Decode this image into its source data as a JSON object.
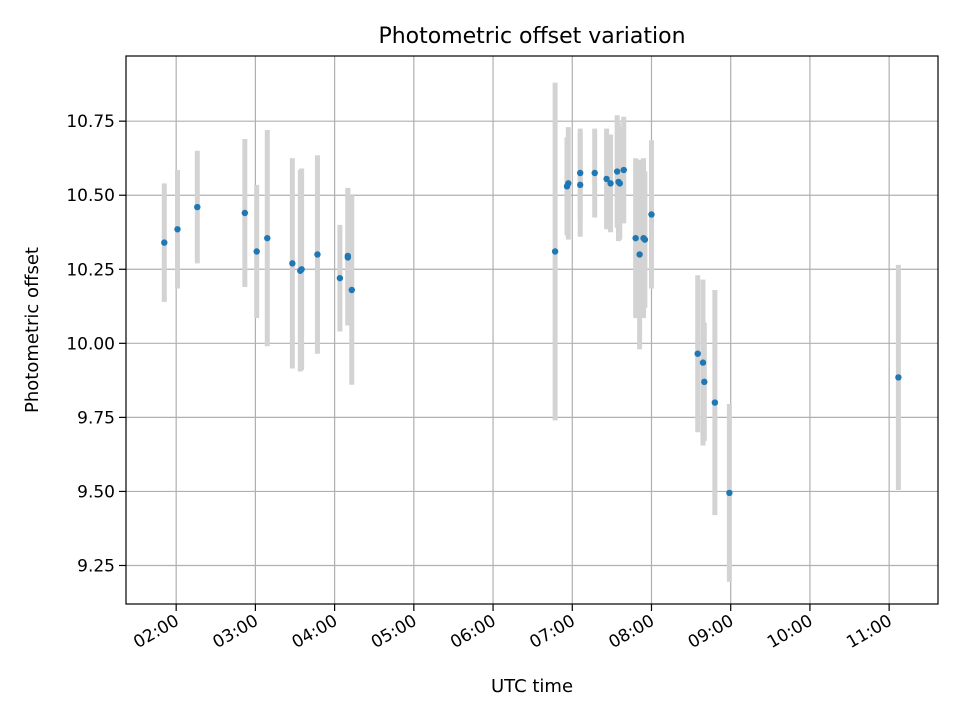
{
  "chart_data": {
    "type": "scatter",
    "title": "Photometric offset variation",
    "xlabel": "UTC time",
    "ylabel": "Photometric offset",
    "xlim": [
      "01:22",
      "11:37"
    ],
    "ylim": [
      9.12,
      10.97
    ],
    "x_ticks": [
      "02:00",
      "03:00",
      "04:00",
      "05:00",
      "06:00",
      "07:00",
      "08:00",
      "09:00",
      "10:00",
      "11:00"
    ],
    "y_ticks": [
      "9.25",
      "9.50",
      "9.75",
      "10.00",
      "10.25",
      "10.50",
      "10.75"
    ],
    "grid": true,
    "colors": {
      "points": "#1f77b4",
      "errorbars": "#d3d3d3",
      "grid": "#b0b0b0",
      "axes": "#000000"
    },
    "series": [
      {
        "x": [
          "01:51",
          "02:01",
          "02:16",
          "02:52",
          "03:01",
          "03:09",
          "03:28",
          "03:34",
          "03:35",
          "03:47",
          "04:04",
          "04:10",
          "04:10",
          "04:13",
          "06:47",
          "06:56",
          "06:57",
          "07:06",
          "07:06",
          "07:17",
          "07:26",
          "07:29",
          "07:34",
          "07:35",
          "07:36",
          "07:39",
          "07:48",
          "07:51",
          "07:54",
          "07:55",
          "08:00",
          "08:35",
          "08:39",
          "08:40",
          "08:48",
          "08:59",
          "11:07"
        ],
        "y": [
          10.34,
          10.385,
          10.46,
          10.44,
          10.31,
          10.355,
          10.27,
          10.245,
          10.25,
          10.3,
          10.22,
          10.29,
          10.295,
          10.18,
          10.31,
          10.53,
          10.54,
          10.535,
          10.575,
          10.575,
          10.555,
          10.54,
          10.58,
          10.545,
          10.54,
          10.585,
          10.355,
          10.3,
          10.355,
          10.35,
          10.435,
          9.965,
          9.935,
          9.87,
          9.8,
          9.495,
          9.885
        ],
        "error": [
          0.2,
          0.2,
          0.19,
          0.25,
          0.225,
          0.365,
          0.355,
          0.34,
          0.34,
          0.335,
          0.18,
          0.23,
          0.23,
          0.32,
          0.57,
          0.165,
          0.19,
          0.175,
          0.15,
          0.15,
          0.17,
          0.165,
          0.19,
          0.2,
          0.19,
          0.18,
          0.27,
          0.32,
          0.27,
          0.23,
          0.25,
          0.265,
          0.28,
          0.2,
          0.38,
          0.3,
          0.38
        ]
      }
    ]
  }
}
